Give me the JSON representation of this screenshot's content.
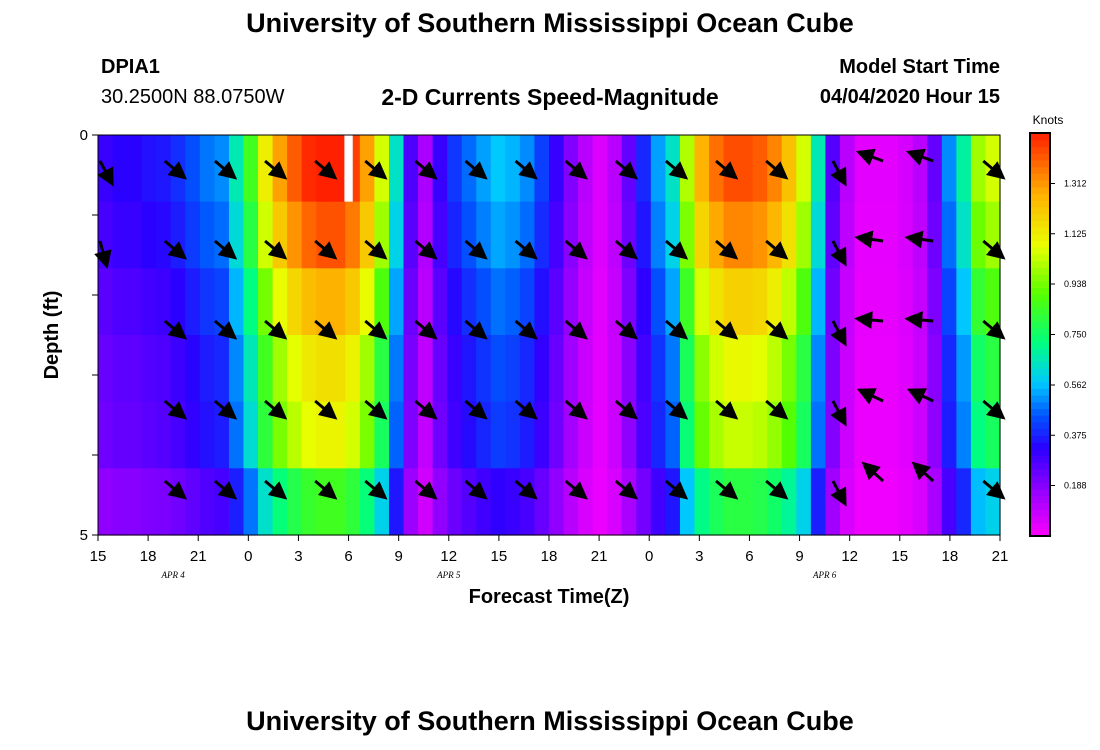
{
  "header": {
    "title": "University of Southern Mississippi Ocean Cube",
    "station_id": "DPIA1",
    "station_coords": "30.2500N 88.0750W",
    "chart_title": "2-D Currents Speed-Magnitude",
    "model_start_label": "Model Start Time",
    "model_start_value": "04/04/2020 Hour 15"
  },
  "footer": {
    "title": "University of Southern Mississippi Ocean Cube"
  },
  "chart_data": {
    "type": "heatmap",
    "title": "2-D Currents Speed-Magnitude",
    "xlabel": "Forecast Time(Z)",
    "ylabel": "Depth (ft)",
    "xlim": [
      0,
      54
    ],
    "ylim": [
      0,
      5
    ],
    "x_tick_labels": [
      "15",
      "18",
      "21",
      "0",
      "3",
      "6",
      "9",
      "12",
      "15",
      "18",
      "21",
      "0",
      "3",
      "6",
      "9",
      "12",
      "15",
      "18",
      "21"
    ],
    "date_labels": [
      {
        "label": "APR 4",
        "hour": 4.5
      },
      {
        "label": "APR 5",
        "hour": 21
      },
      {
        "label": "APR 6",
        "hour": 43.5
      }
    ],
    "y_tick_labels": [
      {
        "label": "0",
        "depth": 0
      },
      {
        "label": "",
        "depth": 1
      },
      {
        "label": "",
        "depth": 2
      },
      {
        "label": "",
        "depth": 3
      },
      {
        "label": "",
        "depth": 4
      },
      {
        "label": "5",
        "depth": 5
      }
    ],
    "colorbar": {
      "unit": "Knots",
      "range": [
        0,
        1.5
      ],
      "ticks": [
        0.188,
        0.375,
        0.562,
        0.75,
        0.938,
        1.125,
        1.312
      ],
      "tick_labels": [
        "0.188",
        "0.375",
        "0.562",
        "0.750",
        "0.938",
        "1.125",
        "1.312"
      ]
    },
    "row_multipliers": [
      1.1,
      1.03,
      0.92,
      0.84,
      0.8,
      0.62
    ],
    "column_speeds": [
      0.28,
      0.3,
      0.3,
      0.32,
      0.33,
      0.36,
      0.4,
      0.44,
      0.46,
      0.6,
      0.78,
      1.02,
      1.18,
      1.28,
      1.35,
      1.38,
      1.38,
      1.32,
      1.18,
      0.96,
      0.58,
      0.25,
      0.12,
      0.28,
      0.37,
      0.43,
      0.48,
      0.52,
      0.5,
      0.46,
      0.38,
      0.28,
      0.18,
      0.1,
      0.05,
      0.1,
      0.22,
      0.35,
      0.48,
      0.58,
      0.92,
      1.15,
      1.25,
      1.3,
      1.3,
      1.28,
      1.22,
      1.12,
      0.96,
      0.6,
      0.24,
      0.1,
      0.04,
      0.04,
      0.04,
      0.06,
      0.1,
      0.22,
      0.46,
      0.62,
      0.9,
      0.96
    ],
    "anomaly": {
      "hour": 15,
      "depth_row": 0,
      "value": 1.6
    },
    "vector_times": [
      0,
      4,
      7,
      10,
      13,
      16,
      19,
      22,
      25,
      28,
      31,
      34,
      37,
      40,
      44,
      47,
      50,
      53
    ],
    "vector_depths": [
      0.25,
      1.25,
      2.25,
      3.25,
      4.25,
      5.0
    ],
    "vector_angles": [
      [
        62,
        40,
        40,
        40,
        40,
        40,
        40,
        40,
        40,
        40,
        40,
        40,
        40,
        40,
        62,
        200,
        200,
        40
      ],
      [
        75,
        40,
        40,
        40,
        40,
        40,
        40,
        40,
        40,
        40,
        40,
        40,
        40,
        40,
        62,
        188,
        188,
        40
      ],
      [
        0,
        40,
        40,
        40,
        40,
        40,
        40,
        40,
        40,
        40,
        40,
        40,
        40,
        40,
        62,
        185,
        185,
        40
      ],
      [
        0,
        40,
        40,
        40,
        40,
        40,
        40,
        40,
        40,
        40,
        40,
        40,
        40,
        40,
        62,
        205,
        205,
        40
      ],
      [
        0,
        40,
        40,
        40,
        40,
        40,
        40,
        40,
        40,
        40,
        40,
        40,
        40,
        40,
        62,
        222,
        222,
        40
      ],
      [
        0,
        0,
        0,
        0,
        0,
        0,
        0,
        0,
        0,
        0,
        0,
        0,
        0,
        0,
        0,
        0,
        0,
        0
      ]
    ]
  }
}
